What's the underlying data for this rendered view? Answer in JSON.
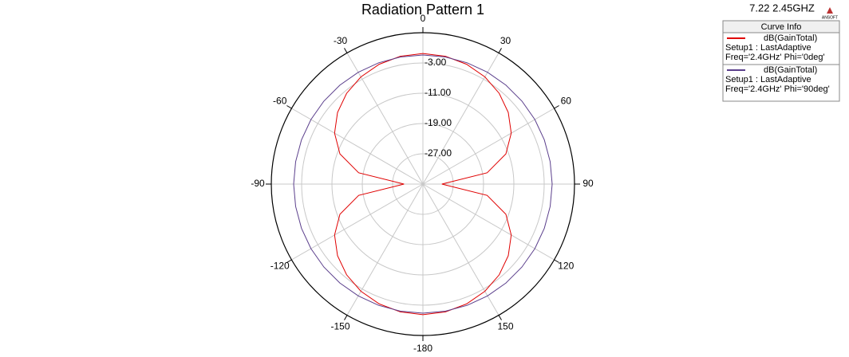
{
  "chart_data": {
    "type": "polar",
    "title": "Radiation Pattern 1",
    "subtitle": "7.22 2.45GHZ",
    "logo": "ANSOFT",
    "legend_title": "Curve Info",
    "theta": [
      0,
      10,
      20,
      30,
      40,
      50,
      60,
      70,
      80,
      90,
      100,
      110,
      120,
      130,
      140,
      150,
      160,
      170,
      180,
      190,
      200,
      210,
      220,
      230,
      240,
      250,
      260,
      270,
      280,
      290,
      300,
      310,
      320,
      330,
      340,
      350,
      360
    ],
    "series": [
      {
        "name": "dB(GainTotal)",
        "setup": "Setup1 : LastAdaptive",
        "condition": "Freq='2.4GHz' Phi='0deg'",
        "color": "#e00000",
        "values": [
          -0.5,
          -0.7,
          -1.3,
          -2.3,
          -3.7,
          -5.6,
          -8.1,
          -11.7,
          -17.8,
          -30,
          -17.8,
          -11.7,
          -8.1,
          -5.6,
          -3.7,
          -2.3,
          -1.3,
          -0.7,
          -0.5,
          -0.7,
          -1.3,
          -2.3,
          -3.7,
          -5.6,
          -8.1,
          -11.7,
          -17.8,
          -30,
          -17.8,
          -11.7,
          -8.1,
          -5.6,
          -3.7,
          -2.3,
          -1.3,
          -0.7,
          -0.5
        ]
      },
      {
        "name": "dB(GainTotal)",
        "setup": "Setup1 : LastAdaptive",
        "condition": "Freq='2.4GHz' Phi='90deg'",
        "color": "#5b3f8c",
        "values": [
          -0.9,
          -0.9,
          -0.9,
          -0.9,
          -0.9,
          -0.9,
          -0.9,
          -0.9,
          -0.9,
          -0.9,
          -0.9,
          -0.9,
          -0.9,
          -0.9,
          -0.9,
          -0.9,
          -0.9,
          -0.9,
          -0.9,
          -0.9,
          -0.9,
          -0.9,
          -0.9,
          -0.9,
          -0.9,
          -0.9,
          -0.9,
          -0.9,
          -0.9,
          -0.9,
          -0.9,
          -0.9,
          -0.9,
          -0.9,
          -0.9,
          -0.9,
          -0.9
        ]
      }
    ],
    "rlim": [
      -35,
      5
    ],
    "rticks": [
      {
        "value": -3,
        "label": "-3.00"
      },
      {
        "value": -11,
        "label": "-11.00"
      },
      {
        "value": -19,
        "label": "-19.00"
      },
      {
        "value": -27,
        "label": "-27.00"
      }
    ],
    "thetaticks": [
      0,
      30,
      60,
      90,
      120,
      150,
      -180,
      -150,
      -120,
      -90,
      -60,
      -30
    ],
    "grid": true
  }
}
